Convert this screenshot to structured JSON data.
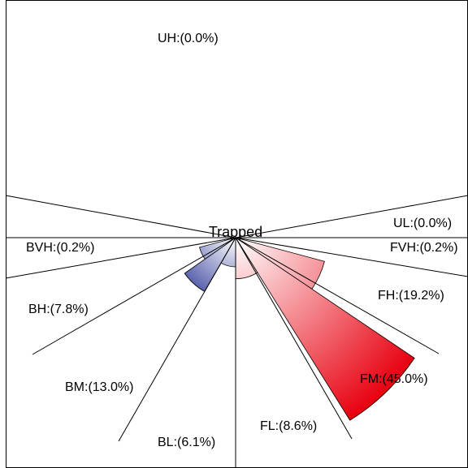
{
  "chart_data": {
    "type": "polar-sector",
    "center_label": "Trapped",
    "colors": {
      "forward": "#e8000f",
      "forward_light": "#ffffff",
      "backward": "#2a3495",
      "backward_light": "#ffffff",
      "axis": "#000000"
    },
    "sectors": [
      {
        "code": "UH",
        "label": "UH:(0.0%)",
        "value": 0.0,
        "side": "up"
      },
      {
        "code": "UL",
        "label": "UL:(0.0%)",
        "value": 0.0,
        "side": "up"
      },
      {
        "code": "FVH",
        "label": "FVH:(0.2%)",
        "value": 0.2,
        "side": "forward"
      },
      {
        "code": "FH",
        "label": "FH:(19.2%)",
        "value": 19.2,
        "side": "forward"
      },
      {
        "code": "FM",
        "label": "FM:(45.0%)",
        "value": 45.0,
        "side": "forward"
      },
      {
        "code": "FL",
        "label": "FL:(8.6%)",
        "value": 8.6,
        "side": "forward"
      },
      {
        "code": "BL",
        "label": "BL:(6.1%)",
        "value": 6.1,
        "side": "backward"
      },
      {
        "code": "BM",
        "label": "BM:(13.0%)",
        "value": 13.0,
        "side": "backward"
      },
      {
        "code": "BH",
        "label": "BH:(7.8%)",
        "value": 7.8,
        "side": "backward"
      },
      {
        "code": "BVH",
        "label": "BVH:(0.2%)",
        "value": 0.2,
        "side": "backward"
      }
    ]
  }
}
